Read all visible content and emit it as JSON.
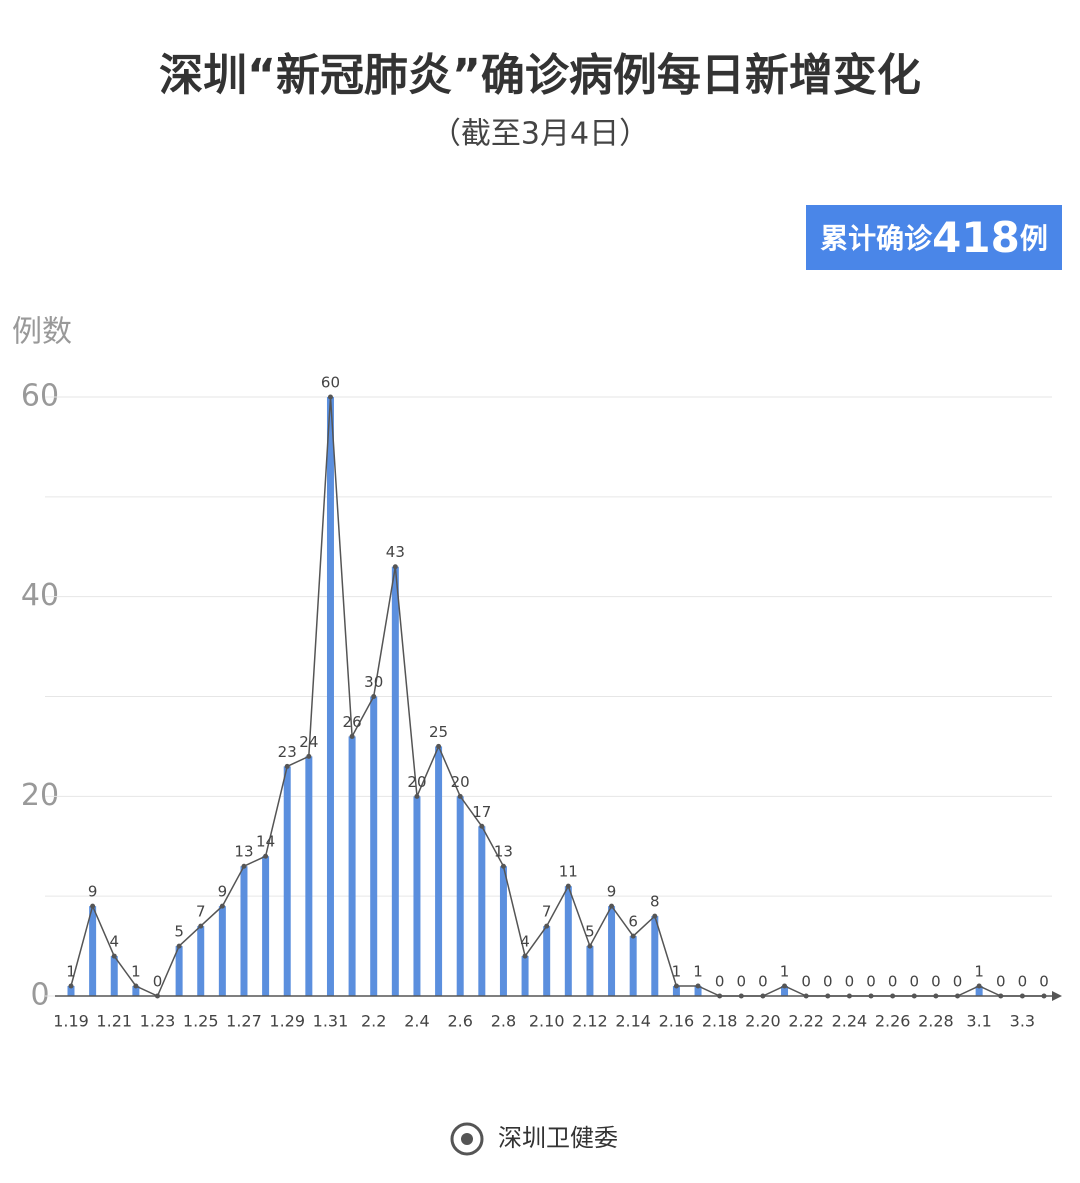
{
  "chart_data": {
    "type": "bar",
    "title": "深圳“新冠肺炎”确诊病例每日新增变化",
    "subtitle": "（截至3月4日）",
    "annotation": {
      "prefix": "累计确诊",
      "value": 418,
      "suffix": "例"
    },
    "y_label": "例数",
    "source": "深圳卫健委",
    "categories": [
      "1.19",
      null,
      "1.21",
      null,
      "1.23",
      null,
      "1.25",
      null,
      "1.27",
      null,
      "1.29",
      null,
      "1.31",
      null,
      "2.2",
      null,
      "2.4",
      null,
      "2.6",
      null,
      "2.8",
      null,
      "2.10",
      null,
      "2.12",
      null,
      "2.14",
      null,
      "2.16",
      null,
      "2.18",
      null,
      "2.20",
      null,
      "2.22",
      null,
      "2.24",
      null,
      "2.26",
      null,
      "2.28",
      null,
      "3.1",
      null,
      "3.3",
      null
    ],
    "values": [
      1,
      9,
      4,
      1,
      0,
      5,
      7,
      9,
      13,
      14,
      23,
      24,
      60,
      26,
      30,
      43,
      20,
      25,
      20,
      17,
      13,
      4,
      7,
      11,
      5,
      9,
      6,
      8,
      1,
      1,
      0,
      0,
      0,
      1,
      0,
      0,
      0,
      0,
      0,
      0,
      0,
      0,
      1,
      0,
      0,
      0
    ],
    "color": "#5b8fde",
    "line_color": "#555555",
    "ylim": [
      0,
      60
    ],
    "yticks": [
      0,
      20,
      40,
      60
    ],
    "minor_yticks": [
      10,
      30,
      50
    ],
    "grid": true
  }
}
